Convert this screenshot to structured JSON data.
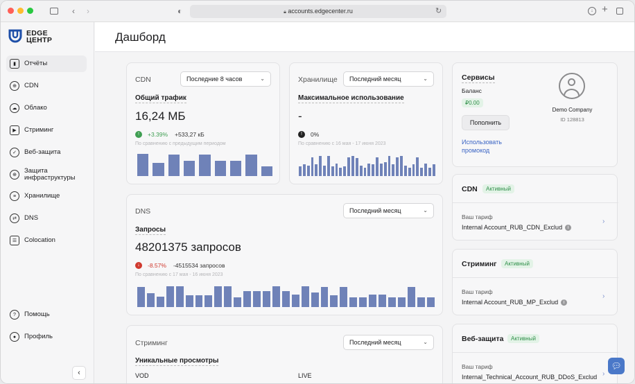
{
  "browser": {
    "url": "accounts.edgecenter.ru"
  },
  "brand": {
    "line1": "EDGE",
    "line2": "ЦЕНТР"
  },
  "sidebar": {
    "items": [
      {
        "label": "Отчёты",
        "icon": "chart-icon"
      },
      {
        "label": "CDN",
        "icon": "globe-icon"
      },
      {
        "label": "Облако",
        "icon": "cloud-icon"
      },
      {
        "label": "Стриминг",
        "icon": "play-icon"
      },
      {
        "label": "Веб-защита",
        "icon": "shield-icon"
      },
      {
        "label": "Защита инфраструктуры",
        "icon": "globe-shield-icon"
      },
      {
        "label": "Хранилище",
        "icon": "database-icon"
      },
      {
        "label": "DNS",
        "icon": "dns-icon"
      },
      {
        "label": "Colocation",
        "icon": "server-icon"
      }
    ],
    "bottom": [
      {
        "label": "Помощь",
        "icon": "help-icon"
      },
      {
        "label": "Профиль",
        "icon": "user-icon"
      }
    ]
  },
  "page": {
    "title": "Дашборд"
  },
  "cdn_card": {
    "title": "CDN",
    "period": "Последние 8 часов",
    "metric_label": "Общий трафик",
    "value": "16,24 МБ",
    "trend_pct": "+3.39%",
    "trend_abs": "+533,27 кБ",
    "compare": "По сравнению с предыдущим периодом",
    "bars": [
      0.95,
      0.55,
      0.92,
      0.65,
      0.92,
      0.65,
      0.65,
      0.92,
      0.4
    ]
  },
  "storage_card": {
    "title": "Хранилище",
    "period": "Последний месяц",
    "metric_label": "Максимальное использование",
    "value": "-",
    "trend_pct": "0%",
    "compare": "По сравнению с 16 мая - 17 июня 2023",
    "bars": [
      0.45,
      0.55,
      0.5,
      0.9,
      0.55,
      0.95,
      0.5,
      0.95,
      0.45,
      0.6,
      0.4,
      0.45,
      0.9,
      0.95,
      0.85,
      0.5,
      0.4,
      0.6,
      0.55,
      0.9,
      0.6,
      0.65,
      0.95,
      0.55,
      0.9,
      0.95,
      0.5,
      0.4,
      0.55,
      0.9,
      0.4,
      0.6,
      0.4,
      0.55
    ]
  },
  "dns_card": {
    "title": "DNS",
    "period": "Последний месяц",
    "metric_label": "Запросы",
    "value": "48201375 запросов",
    "trend_pct": "-8.57%",
    "trend_abs": "-4515534 запросов",
    "compare": "По сравнению с 17 мая - 16 июня 2023",
    "bars": [
      0.95,
      0.65,
      0.5,
      1.0,
      1.0,
      0.55,
      0.55,
      0.55,
      1.0,
      1.0,
      0.45,
      0.75,
      0.75,
      0.75,
      1.0,
      0.75,
      0.6,
      1.0,
      0.7,
      0.95,
      0.55,
      0.95,
      0.45,
      0.45,
      0.6,
      0.6,
      0.45,
      0.45,
      0.95,
      0.45,
      0.45
    ]
  },
  "stream_card": {
    "title": "Стриминг",
    "period": "Последний месяц",
    "metric_label": "Уникальные просмотры",
    "col1": "VOD",
    "col2": "LIVE"
  },
  "services": {
    "title": "Сервисы",
    "balance_label": "Баланс",
    "balance": "₽0.00",
    "topup": "Пополнить",
    "promo": "Использовать промокод",
    "company": "Demo Company",
    "id": "ID 128813"
  },
  "plans": [
    {
      "title": "CDN",
      "status": "Активный",
      "tariff_label": "Ваш тариф",
      "tariff": "Internal Account_RUB_CDN_Exclud"
    },
    {
      "title": "Стриминг",
      "status": "Активный",
      "tariff_label": "Ваш тариф",
      "tariff": "Internal Account_RUB_MP_Exclud"
    },
    {
      "title": "Веб-защита",
      "status": "Активный",
      "tariff_label": "Ваш тариф",
      "tariff": "Internal_Technical_Account_RUB_DDoS_Exclud"
    }
  ],
  "colors": {
    "bar": "#6f82b8",
    "up": "#3f9e52",
    "down": "#d03a2f",
    "active_badge": "#2f8f49"
  }
}
